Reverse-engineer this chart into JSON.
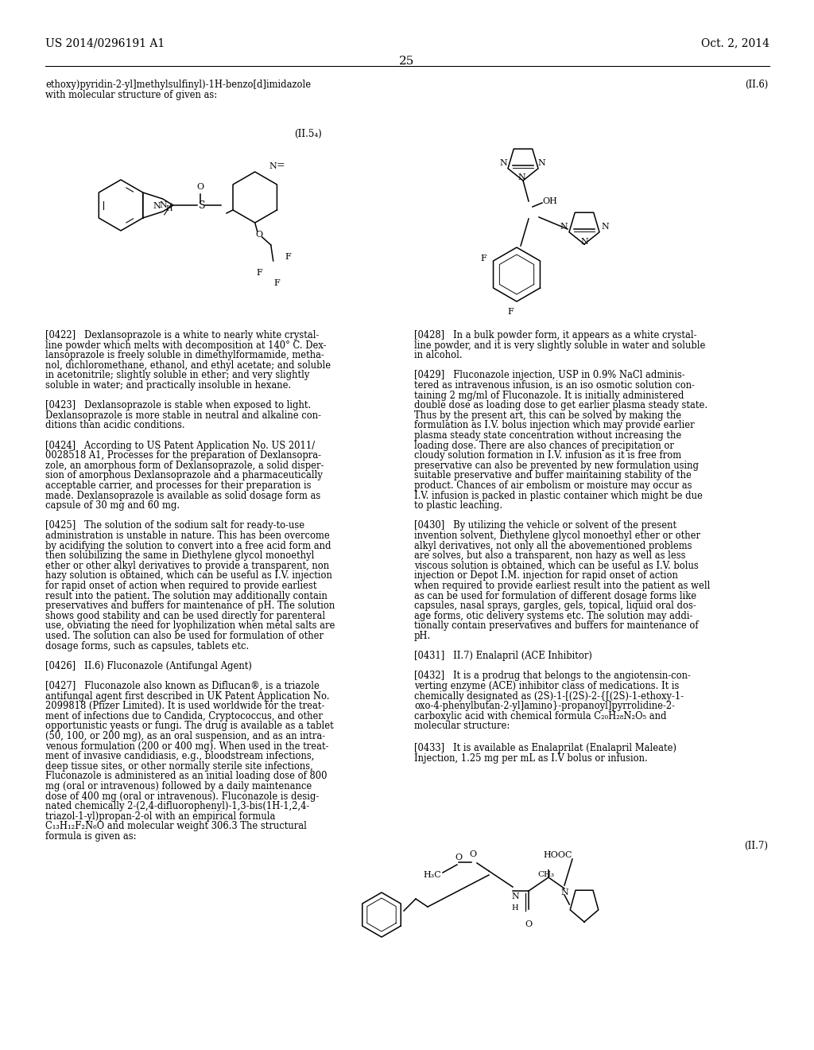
{
  "page_width": 10.24,
  "page_height": 13.2,
  "dpi": 100,
  "bg_color": "#ffffff",
  "header_left": "US 2014/0296191 A1",
  "header_right": "Oct. 2, 2014",
  "page_number": "25",
  "top_line1": "ethoxy)pyridin-2-yl]methylsulfinyl)-1H-benzo[d]imidazole",
  "top_line2": "with molecular structure of given as:",
  "label_II5a": "(II.5₄)",
  "label_II6": "(II.6)",
  "label_II7": "(II.7)",
  "left_col_lines": [
    "[0422]   Dexlansoprazole is a white to nearly white crystal-",
    "line powder which melts with decomposition at 140° C. Dex-",
    "lansoprazole is freely soluble in dimethylformamide, metha-",
    "nol, dichloromethane, ethanol, and ethyl acetate; and soluble",
    "in acetonitrile; slightly soluble in ether; and very slightly",
    "soluble in water; and practically insoluble in hexane.",
    "",
    "[0423]   Dexlansoprazole is stable when exposed to light.",
    "Dexlansoprazole is more stable in neutral and alkaline con-",
    "ditions than acidic conditions.",
    "",
    "[0424]   According to US Patent Application No. US 2011/",
    "0028518 A1, Processes for the preparation of Dexlansopra-",
    "zole, an amorphous form of Dexlansoprazole, a solid disper-",
    "sion of amorphous Dexlansoprazole and a pharmaceutically",
    "acceptable carrier, and processes for their preparation is",
    "made. Dexlansoprazole is available as solid dosage form as",
    "capsule of 30 mg and 60 mg.",
    "",
    "[0425]   The solution of the sodium salt for ready-to-use",
    "administration is unstable in nature. This has been overcome",
    "by acidifying the solution to convert into a free acid form and",
    "then solubilizing the same in Diethylene glycol monoethyl",
    "ether or other alkyl derivatives to provide a transparent, non",
    "hazy solution is obtained, which can be useful as I.V. injection",
    "for rapid onset of action when required to provide earliest",
    "result into the patient. The solution may additionally contain",
    "preservatives and buffers for maintenance of pH. The solution",
    "shows good stability and can be used directly for parenteral",
    "use, obviating the need for lyophilization when metal salts are",
    "used. The solution can also be used for formulation of other",
    "dosage forms, such as capsules, tablets etc.",
    "",
    "[0426]   II.6) Fluconazole (Antifungal Agent)",
    "",
    "[0427]   Fluconazole also known as Diflucan®, is a triazole",
    "antifungal agent first described in UK Patent Application No.",
    "2099818 (Pfizer Limited). It is used worldwide for the treat-",
    "ment of infections due to Candida, Cryptococcus, and other",
    "opportunistic yeasts or fungi. The drug is available as a tablet",
    "(50, 100, or 200 mg), as an oral suspension, and as an intra-",
    "venous formulation (200 or 400 mg). When used in the treat-",
    "ment of invasive candidiasis, e.g., bloodstream infections,",
    "deep tissue sites, or other normally sterile site infections,",
    "Fluconazole is administered as an initial loading dose of 800",
    "mg (oral or intravenous) followed by a daily maintenance",
    "dose of 400 mg (oral or intravenous). Fluconazole is desig-",
    "nated chemically 2-(2,4-difluorophenyl)-1,3-bis(1H-1,2,4-",
    "triazol-1-yl)propan-2-ol with an empirical formula",
    "C₁₃H₁₂F₂N₆O and molecular weight 306.3 The structural",
    "formula is given as:"
  ],
  "right_col_lines": [
    "[0428]   In a bulk powder form, it appears as a white crystal-",
    "line powder, and it is very slightly soluble in water and soluble",
    "in alcohol.",
    "",
    "[0429]   Fluconazole injection, USP in 0.9% NaCl adminis-",
    "tered as intravenous infusion, is an iso osmotic solution con-",
    "taining 2 mg/ml of Fluconazole. It is initially administered",
    "double dose as loading dose to get earlier plasma steady state.",
    "Thus by the present art, this can be solved by making the",
    "formulation as I.V. bolus injection which may provide earlier",
    "plasma steady state concentration without increasing the",
    "loading dose. There are also chances of precipitation or",
    "cloudy solution formation in I.V. infusion as it is free from",
    "preservative can also be prevented by new formulation using",
    "suitable preservative and buffer maintaining stability of the",
    "product. Chances of air embolism or moisture may occur as",
    "I.V. infusion is packed in plastic container which might be due",
    "to plastic leaching.",
    "",
    "[0430]   By utilizing the vehicle or solvent of the present",
    "invention solvent, Diethylene glycol monoethyl ether or other",
    "alkyl derivatives, not only all the abovementioned problems",
    "are solves, but also a transparent, non hazy as well as less",
    "viscous solution is obtained, which can be useful as I.V. bolus",
    "injection or Depot I.M. injection for rapid onset of action",
    "when required to provide earliest result into the patient as well",
    "as can be used for formulation of different dosage forms like",
    "capsules, nasal sprays, gargles, gels, topical, liquid oral dos-",
    "age forms, otic delivery systems etc. The solution may addi-",
    "tionally contain preservatives and buffers for maintenance of",
    "pH.",
    "",
    "[0431]   II.7) Enalapril (ACE Inhibitor)",
    "",
    "[0432]   It is a prodrug that belongs to the angiotensin-con-",
    "verting enzyme (ACE) inhibitor class of medications. It is",
    "chemically designated as (2S)-1-[(2S)-2-{[(2S)-1-ethoxy-1-",
    "oxo-4-phenylbutan-2-yl]amino}-propanoyl]pyrrolidine-2-",
    "carboxylic acid with chemical formula C₂₀H₂₈N₂O₅ and",
    "molecular structure:"
  ],
  "last_line": "[0433]   It is available as Enalaprilat (Enalapril Maleate)",
  "last_line2": "Injection, 1.25 mg per mL as I.V bolus or infusion."
}
